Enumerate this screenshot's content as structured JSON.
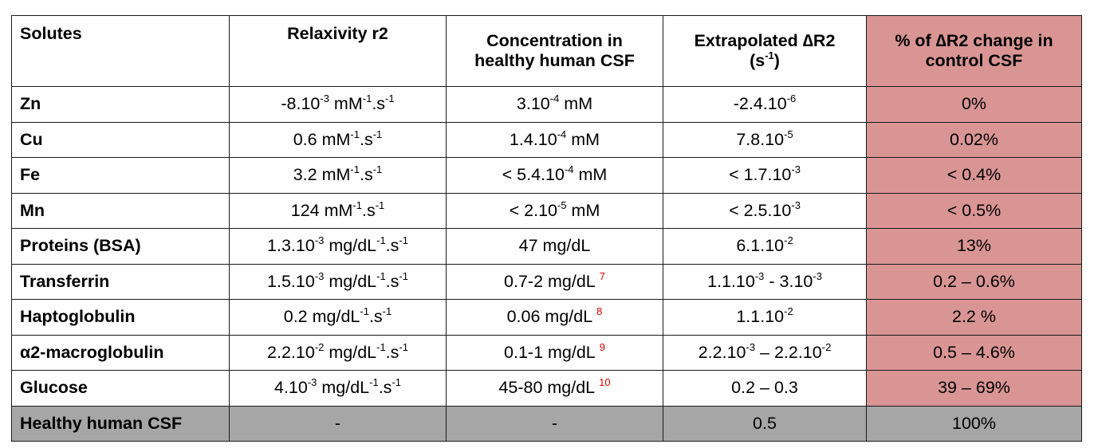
{
  "table": {
    "headers": {
      "solutes": "Solutes",
      "relaxivity": "Relaxivity r2",
      "concentration_line1": "Concentration  in",
      "concentration_line2": "healthy human CSF",
      "deltaR2_line1": "Extrapolated ∆R2",
      "deltaR2_unit_open": "(s",
      "deltaR2_unit_sup": "-1",
      "deltaR2_unit_close": ")",
      "percent_line1": "% of ∆R2 change in",
      "percent_line2": "control CSF"
    },
    "rows": [
      {
        "solute": "Zn",
        "relaxivity": [
          "-8.10",
          "-3",
          " mM",
          "-1",
          ".s",
          "-1"
        ],
        "concentration": [
          "3.10",
          "-4",
          " mM"
        ],
        "delta": [
          "-2.4.10",
          "-6",
          ""
        ],
        "percent": "0%"
      },
      {
        "solute": "Cu",
        "relaxivity": [
          "0.6 mM",
          "-1",
          ".s",
          "-1"
        ],
        "concentration": [
          "1.4.10",
          "-4",
          " mM"
        ],
        "delta": [
          "7.8.10",
          "-5",
          ""
        ],
        "percent": "0.02%"
      },
      {
        "solute": "Fe",
        "relaxivity": [
          "3.2 mM",
          "-1",
          ".s",
          "-1"
        ],
        "concentration": [
          "< 5.4.10",
          "-4",
          " mM"
        ],
        "delta": [
          "< 1.7.10",
          "-3",
          ""
        ],
        "percent": "< 0.4%"
      },
      {
        "solute": "Mn",
        "relaxivity": [
          "124 mM",
          "-1",
          ".s",
          "-1"
        ],
        "concentration": [
          "< 2.10",
          "-5",
          " mM"
        ],
        "delta": [
          "< 2.5.10",
          "-3",
          ""
        ],
        "percent": "< 0.5%"
      },
      {
        "solute": "Proteins (BSA)",
        "relaxivity": [
          "1.3.10",
          "-3",
          " mg/dL",
          "-1",
          ".s",
          "-1"
        ],
        "concentration": "47 mg/dL",
        "delta": [
          "6.1.10",
          "-2",
          ""
        ],
        "percent": "13%"
      },
      {
        "solute": "Transferrin",
        "relaxivity": [
          "1.5.10",
          "-3",
          " mg/dL",
          "-1",
          ".s",
          "-1"
        ],
        "concentration": "0.7-2 mg/dL",
        "ref": "7",
        "delta": [
          "1.1.10",
          "-3",
          " - 3.10",
          "-3"
        ],
        "percent": "0.2 – 0.6%"
      },
      {
        "solute": "Haptoglobulin",
        "relaxivity": [
          "0.2 mg/dL",
          "-1",
          ".s",
          "-1"
        ],
        "concentration": "0.06 mg/dL",
        "ref": "8",
        "delta": [
          "1.1.10",
          "-2",
          ""
        ],
        "percent": "2.2 %"
      },
      {
        "solute": "α2-macroglobulin",
        "relaxivity": [
          "2.2.10",
          "-2",
          " mg/dL",
          "-1",
          ".s",
          "-1"
        ],
        "concentration": "0.1-1 mg/dL",
        "ref": "9",
        "delta": [
          "2.2.10",
          "-3",
          " – 2.2.10",
          "-2"
        ],
        "percent": "0.5 – 4.6%"
      },
      {
        "solute": "Glucose",
        "relaxivity": [
          "4.10",
          "-3",
          " mg/dL",
          "-1",
          ".s",
          "-1"
        ],
        "concentration": "45-80 mg/dL",
        "ref": "10",
        "delta": "0.2 – 0.3",
        "percent": "39 – 69%"
      }
    ],
    "total_row": {
      "solute": "Healthy human CSF",
      "relaxivity": "-",
      "concentration": "-",
      "delta": "0.5",
      "percent": "100%"
    }
  },
  "colors": {
    "highlight_column": "#d99594",
    "total_row": "#a6a6a6",
    "reference_marks": "#e00000",
    "border": "#1a1a1a"
  }
}
